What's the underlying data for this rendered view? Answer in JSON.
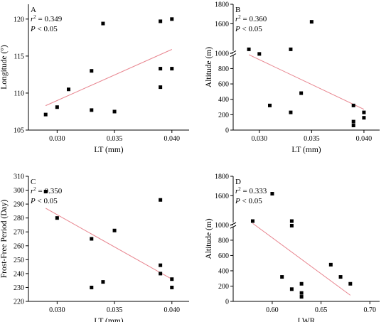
{
  "chart_data": [
    {
      "type": "scatter",
      "panel": "A",
      "stat_r2_sym": "r",
      "stat_r2_val": "= 0.349",
      "stat_p_sym": "P",
      "stat_p_val": "< 0.05",
      "xlabel": "LT (mm)",
      "ylabel": "Longitude (°)",
      "xlim": [
        0.0275,
        0.0415
      ],
      "ylim": [
        105,
        122
      ],
      "xticks": [
        0.03,
        0.035,
        0.04
      ],
      "xtick_labels": [
        "0.030",
        "0.035",
        "0.040"
      ],
      "yticks": [
        105,
        110,
        115,
        120
      ],
      "ytick_labels": [
        "105",
        "110",
        "115",
        "120"
      ],
      "x": [
        0.029,
        0.03,
        0.031,
        0.033,
        0.033,
        0.034,
        0.035,
        0.039,
        0.039,
        0.039,
        0.04,
        0.04
      ],
      "y": [
        107.1,
        108.1,
        110.5,
        113.0,
        107.7,
        119.4,
        107.5,
        119.7,
        113.3,
        110.8,
        120.0,
        113.3
      ],
      "fit": {
        "x": [
          0.029,
          0.04
        ],
        "y": [
          108.3,
          115.9
        ]
      }
    },
    {
      "type": "scatter",
      "panel": "B",
      "stat_r2_sym": "r",
      "stat_r2_val": "= 0.360",
      "stat_p_sym": "P",
      "stat_p_val": "< 0.05",
      "xlabel": "LT (mm)",
      "ylabel": "Altitude (m)",
      "xlim": [
        0.0275,
        0.0415
      ],
      "ylim": [
        0,
        1800
      ],
      "axis_break": true,
      "xticks": [
        0.03,
        0.035,
        0.04
      ],
      "xtick_labels": [
        "0.030",
        "0.035",
        "0.040"
      ],
      "yticks": [
        0,
        200,
        400,
        600,
        800,
        1000,
        1600,
        1800
      ],
      "ytick_labels": [
        "0",
        "200",
        "400",
        "600",
        "800",
        "1000",
        "1600",
        "1800"
      ],
      "x": [
        0.029,
        0.03,
        0.031,
        0.033,
        0.033,
        0.034,
        0.035,
        0.039,
        0.039,
        0.039,
        0.04,
        0.04
      ],
      "y": [
        1050,
        990,
        320,
        1050,
        230,
        480,
        1620,
        320,
        110,
        60,
        230,
        160
      ],
      "fit": {
        "x": [
          0.029,
          0.04
        ],
        "y": [
          980,
          270
        ]
      }
    },
    {
      "type": "scatter",
      "panel": "C",
      "stat_r2_sym": "r",
      "stat_r2_val": "= 0.350",
      "stat_p_sym": "P",
      "stat_p_val": "< 0.05",
      "xlabel": "LT (mm)",
      "ylabel": "Frost-Free Period (Day)",
      "xlim": [
        0.0275,
        0.0415
      ],
      "ylim": [
        220,
        310
      ],
      "xticks": [
        0.03,
        0.035,
        0.04
      ],
      "xtick_labels": [
        "0.030",
        "0.035",
        "0.040"
      ],
      "yticks": [
        220,
        230,
        240,
        250,
        260,
        270,
        280,
        290,
        300,
        310
      ],
      "ytick_labels": [
        "220",
        "230",
        "240",
        "250",
        "260",
        "270",
        "280",
        "290",
        "300",
        "310"
      ],
      "x": [
        0.029,
        0.03,
        0.033,
        0.033,
        0.034,
        0.035,
        0.039,
        0.039,
        0.039,
        0.04,
        0.04
      ],
      "y": [
        299,
        280,
        265,
        230,
        234,
        271,
        293,
        246,
        240,
        236,
        230
      ],
      "fit": {
        "x": [
          0.029,
          0.04
        ],
        "y": [
          287,
          236
        ]
      }
    },
    {
      "type": "scatter",
      "panel": "D",
      "stat_r2_sym": "r",
      "stat_r2_val": "= 0.333",
      "stat_p_sym": "P",
      "stat_p_val": "< 0.05",
      "xlabel": "LWR",
      "ylabel": "Altitude (m)",
      "xlim": [
        0.56,
        0.71
      ],
      "ylim": [
        0,
        1800
      ],
      "axis_break": true,
      "xticks": [
        0.6,
        0.65,
        0.7
      ],
      "xtick_labels": [
        "0.60",
        "0.65",
        "0.70"
      ],
      "yticks": [
        0,
        200,
        400,
        600,
        800,
        1000,
        1600,
        1800
      ],
      "ytick_labels": [
        "0",
        "200",
        "400",
        "600",
        "800",
        "1000",
        "1600",
        "1800"
      ],
      "x": [
        0.58,
        0.6,
        0.61,
        0.62,
        0.62,
        0.62,
        0.63,
        0.63,
        0.63,
        0.66,
        0.67,
        0.68
      ],
      "y": [
        1050,
        1620,
        320,
        1050,
        990,
        160,
        230,
        110,
        60,
        480,
        320,
        230
      ],
      "fit": {
        "x": [
          0.58,
          0.68
        ],
        "y": [
          1020,
          80
        ]
      }
    }
  ]
}
